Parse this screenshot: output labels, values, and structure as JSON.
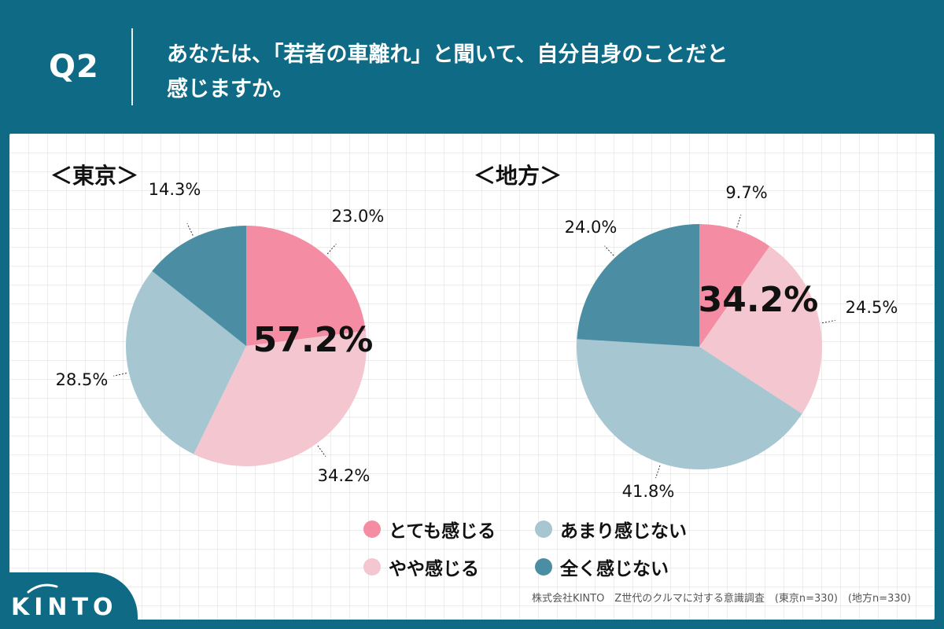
{
  "header": {
    "q_label": "Q2",
    "question_line1": "あなたは、「若者の車離れ」と聞いて、自分自身のことだと",
    "question_line2": "感じますか。"
  },
  "colors": {
    "header_bg": "#0f6b85",
    "cat_very": "#f48ca3",
    "cat_somewhat": "#f4c6cf",
    "cat_notmuch": "#a6c6d1",
    "cat_notatall": "#4b8ea4"
  },
  "chart_data": [
    {
      "type": "pie",
      "title": "＜東京＞",
      "categories": [
        "とても感じる",
        "やや感じる",
        "あまり感じない",
        "全く感じない"
      ],
      "values": [
        23.0,
        34.2,
        28.5,
        14.3
      ],
      "labels": [
        "23.0%",
        "34.2%",
        "28.5%",
        "14.3%"
      ],
      "center_annotation": "57.2%"
    },
    {
      "type": "pie",
      "title": "＜地方＞",
      "categories": [
        "とても感じる",
        "やや感じる",
        "あまり感じない",
        "全く感じない"
      ],
      "values": [
        9.7,
        24.5,
        41.8,
        24.0
      ],
      "labels": [
        "9.7%",
        "24.5%",
        "41.8%",
        "24.0%"
      ],
      "center_annotation": "34.2%"
    }
  ],
  "legend": [
    {
      "label": "とても感じる",
      "color": "#f48ca3"
    },
    {
      "label": "あまり感じない",
      "color": "#a6c6d1"
    },
    {
      "label": "やや感じる",
      "color": "#f4c6cf"
    },
    {
      "label": "全く感じない",
      "color": "#4b8ea4"
    }
  ],
  "footer": {
    "source": "株式会社KINTO　Z世代のクルマに対する意識調査　(東京n=330)　(地方n=330)",
    "logo_text": "KINTO"
  }
}
